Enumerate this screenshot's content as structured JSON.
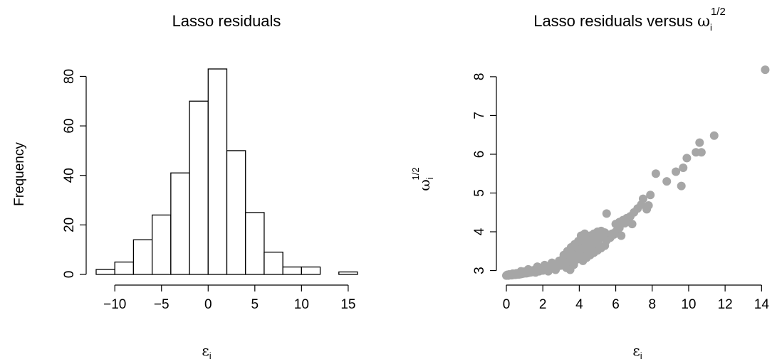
{
  "chart_data": [
    {
      "type": "histogram",
      "title": "Lasso residuals",
      "xlabel_symbol": "ε",
      "xlabel_subscript": "i",
      "ylabel": "Frequency",
      "bin_edges": [
        -12,
        -10,
        -8,
        -6,
        -4,
        -2,
        0,
        2,
        4,
        6,
        8,
        10,
        12,
        14,
        16
      ],
      "counts": [
        2,
        5,
        14,
        24,
        41,
        70,
        83,
        50,
        25,
        9,
        3,
        3,
        0,
        1
      ],
      "xlim": [
        -12,
        16
      ],
      "ylim": [
        0,
        83
      ],
      "xticks": [
        -10,
        -5,
        0,
        5,
        10,
        15
      ],
      "xtick_labels": [
        "−10",
        "−5",
        "0",
        "5",
        "10",
        "15"
      ],
      "yticks": [
        0,
        20,
        40,
        60,
        80
      ],
      "ytick_labels": [
        "0",
        "20",
        "40",
        "60",
        "80"
      ],
      "bar_fill": "#ffffff",
      "bar_stroke": "#000000",
      "grid": false
    },
    {
      "type": "scatter",
      "title_prefix": "Lasso residuals versus ",
      "title_symbol": "ω",
      "title_subscript": "i",
      "title_superscript": "1/2",
      "xlabel_symbol": "ε",
      "xlabel_subscript": "i",
      "ylabel_symbol": "ω",
      "ylabel_subscript": "i",
      "ylabel_superscript": "1/2",
      "xlim": [
        0,
        14.3
      ],
      "ylim": [
        2.9,
        8.2
      ],
      "xticks": [
        0,
        2,
        4,
        6,
        8,
        10,
        12,
        14
      ],
      "xtick_labels": [
        "0",
        "2",
        "4",
        "6",
        "8",
        "10",
        "12",
        "14"
      ],
      "yticks": [
        3,
        4,
        5,
        6,
        7,
        8
      ],
      "ytick_labels": [
        "3",
        "4",
        "5",
        "6",
        "7",
        "8"
      ],
      "point_color": "#a6a6a6",
      "grid": false,
      "points": [
        [
          0.0,
          2.87
        ],
        [
          0.1,
          2.87
        ],
        [
          0.2,
          2.88
        ],
        [
          0.3,
          2.88
        ],
        [
          0.4,
          2.89
        ],
        [
          0.5,
          2.89
        ],
        [
          0.6,
          2.9
        ],
        [
          0.7,
          2.9
        ],
        [
          0.8,
          2.91
        ],
        [
          0.9,
          2.92
        ],
        [
          1.0,
          2.93
        ],
        [
          1.1,
          2.93
        ],
        [
          1.2,
          2.94
        ],
        [
          1.3,
          2.95
        ],
        [
          1.4,
          2.96
        ],
        [
          1.5,
          2.97
        ],
        [
          0.15,
          2.9
        ],
        [
          0.35,
          2.92
        ],
        [
          0.55,
          2.93
        ],
        [
          0.75,
          2.95
        ],
        [
          0.95,
          2.97
        ],
        [
          1.15,
          2.98
        ],
        [
          1.35,
          3.0
        ],
        [
          1.55,
          3.02
        ],
        [
          1.75,
          3.03
        ],
        [
          1.95,
          3.05
        ],
        [
          2.15,
          3.07
        ],
        [
          2.35,
          3.09
        ],
        [
          2.55,
          3.11
        ],
        [
          2.75,
          3.14
        ],
        [
          2.95,
          3.16
        ],
        [
          1.6,
          2.95
        ],
        [
          1.8,
          2.98
        ],
        [
          2.0,
          3.0
        ],
        [
          2.2,
          3.02
        ],
        [
          2.4,
          3.05
        ],
        [
          2.6,
          3.08
        ],
        [
          2.8,
          3.1
        ],
        [
          3.0,
          3.13
        ],
        [
          3.2,
          3.16
        ],
        [
          3.4,
          3.2
        ],
        [
          3.6,
          3.23
        ],
        [
          3.8,
          3.27
        ],
        [
          4.0,
          3.3
        ],
        [
          0.8,
          2.98
        ],
        [
          1.2,
          3.03
        ],
        [
          1.7,
          3.1
        ],
        [
          2.1,
          3.14
        ],
        [
          2.5,
          3.2
        ],
        [
          2.9,
          3.25
        ],
        [
          3.1,
          3.3
        ],
        [
          3.3,
          3.36
        ],
        [
          3.5,
          3.42
        ],
        [
          3.7,
          3.47
        ],
        [
          3.9,
          3.52
        ],
        [
          4.1,
          3.58
        ],
        [
          4.3,
          3.63
        ],
        [
          2.3,
          2.98
        ],
        [
          2.7,
          3.02
        ],
        [
          3.3,
          3.07
        ],
        [
          3.5,
          3.02
        ],
        [
          3.7,
          3.15
        ],
        [
          4.2,
          3.25
        ],
        [
          4.4,
          3.33
        ],
        [
          4.6,
          3.4
        ],
        [
          4.8,
          3.46
        ],
        [
          5.0,
          3.52
        ],
        [
          5.2,
          3.58
        ],
        [
          5.4,
          3.64
        ],
        [
          3.4,
          3.45
        ],
        [
          3.6,
          3.55
        ],
        [
          3.8,
          3.62
        ],
        [
          4.0,
          3.7
        ],
        [
          4.2,
          3.78
        ],
        [
          4.4,
          3.85
        ],
        [
          4.6,
          3.9
        ],
        [
          4.8,
          3.95
        ],
        [
          5.0,
          4.0
        ],
        [
          5.2,
          4.02
        ],
        [
          5.4,
          3.98
        ],
        [
          5.6,
          3.92
        ],
        [
          4.1,
          3.9
        ],
        [
          4.3,
          3.95
        ],
        [
          4.5,
          3.88
        ],
        [
          4.7,
          3.8
        ],
        [
          4.9,
          3.75
        ],
        [
          5.1,
          3.82
        ],
        [
          5.3,
          3.88
        ],
        [
          5.5,
          3.78
        ],
        [
          5.7,
          3.85
        ],
        [
          5.9,
          3.93
        ],
        [
          6.1,
          3.98
        ],
        [
          4.0,
          3.35
        ],
        [
          4.5,
          3.45
        ],
        [
          5.0,
          3.6
        ],
        [
          5.5,
          4.47
        ],
        [
          5.8,
          3.95
        ],
        [
          6.0,
          4.0
        ],
        [
          6.2,
          4.1
        ],
        [
          6.3,
          3.9
        ],
        [
          6.4,
          4.3
        ],
        [
          6.6,
          4.35
        ],
        [
          6.8,
          4.4
        ],
        [
          6.9,
          4.2
        ],
        [
          6.0,
          4.2
        ],
        [
          6.2,
          4.25
        ],
        [
          6.5,
          4.22
        ],
        [
          7.0,
          4.5
        ],
        [
          7.2,
          4.6
        ],
        [
          7.4,
          4.7
        ],
        [
          7.5,
          4.85
        ],
        [
          7.7,
          4.58
        ],
        [
          7.8,
          4.68
        ],
        [
          7.9,
          4.95
        ],
        [
          8.2,
          5.5
        ],
        [
          8.8,
          5.3
        ],
        [
          9.3,
          5.55
        ],
        [
          9.7,
          5.65
        ],
        [
          9.6,
          5.18
        ],
        [
          9.9,
          5.9
        ],
        [
          10.4,
          6.05
        ],
        [
          10.6,
          6.3
        ],
        [
          10.7,
          6.05
        ],
        [
          11.4,
          6.48
        ],
        [
          14.2,
          8.18
        ],
        [
          0.05,
          2.89
        ],
        [
          0.25,
          2.89
        ],
        [
          0.45,
          2.9
        ],
        [
          0.65,
          2.91
        ],
        [
          0.85,
          2.92
        ],
        [
          1.05,
          2.94
        ],
        [
          1.25,
          2.96
        ],
        [
          1.45,
          2.98
        ],
        [
          1.65,
          2.99
        ],
        [
          1.85,
          3.01
        ],
        [
          2.05,
          3.03
        ],
        [
          2.25,
          3.05
        ],
        [
          2.45,
          3.07
        ],
        [
          2.65,
          3.09
        ],
        [
          2.85,
          3.12
        ],
        [
          3.05,
          3.14
        ],
        [
          3.25,
          3.19
        ],
        [
          3.45,
          3.24
        ],
        [
          3.65,
          3.29
        ],
        [
          3.85,
          3.33
        ],
        [
          4.05,
          3.38
        ],
        [
          4.25,
          3.43
        ],
        [
          4.45,
          3.5
        ],
        [
          4.65,
          3.56
        ],
        [
          4.85,
          3.62
        ],
        [
          5.05,
          3.67
        ],
        [
          3.15,
          3.4
        ],
        [
          3.35,
          3.5
        ],
        [
          3.55,
          3.6
        ],
        [
          3.75,
          3.68
        ],
        [
          3.95,
          3.76
        ],
        [
          4.15,
          3.82
        ],
        [
          4.35,
          3.72
        ],
        [
          4.55,
          3.66
        ],
        [
          4.75,
          3.7
        ],
        [
          4.95,
          3.86
        ],
        [
          5.15,
          3.92
        ],
        [
          5.35,
          3.95
        ]
      ]
    }
  ]
}
